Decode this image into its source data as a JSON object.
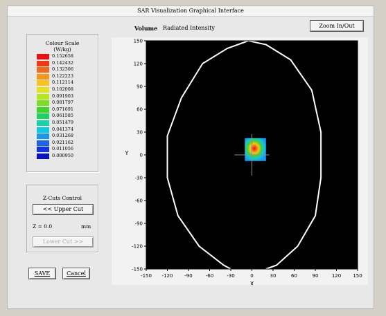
{
  "window": {
    "title": "SAR Visualization Graphical Interface"
  },
  "toolbar": {
    "zoom_label": "Zoom In/Out"
  },
  "header": {
    "volume_label": "Volume",
    "volume_value": "Radiated Intensity"
  },
  "colour_scale": {
    "title": "Colour Scale",
    "unit": "(W/kg)",
    "entries": [
      {
        "value": "0.152658",
        "color": "#e81010"
      },
      {
        "value": "0.142432",
        "color": "#ee3a14"
      },
      {
        "value": "0.132306",
        "color": "#f46a18"
      },
      {
        "value": "0.122223",
        "color": "#f8961c"
      },
      {
        "value": "0.112114",
        "color": "#fbc21f"
      },
      {
        "value": "0.102008",
        "color": "#e4e220"
      },
      {
        "value": "0.091903",
        "color": "#b4e622"
      },
      {
        "value": "0.081797",
        "color": "#7ade22"
      },
      {
        "value": "0.071691",
        "color": "#3ed624"
      },
      {
        "value": "0.061585",
        "color": "#20d060"
      },
      {
        "value": "0.051479",
        "color": "#16d2a8"
      },
      {
        "value": "0.041374",
        "color": "#10c8e0"
      },
      {
        "value": "0.031268",
        "color": "#1898ee"
      },
      {
        "value": "0.021162",
        "color": "#1a64ee"
      },
      {
        "value": "0.011056",
        "color": "#1234e0"
      },
      {
        "value": "0.000950",
        "color": "#0a10c4"
      }
    ]
  },
  "zcut": {
    "title": "Z-Cuts Control",
    "upper_cut_label": "<< Upper Cut",
    "z_label": "Z = 0.0",
    "z_unit": "mm",
    "lower_cut_label": "Lower Cut >>"
  },
  "buttons": {
    "save_label": "SAVE",
    "cancel_label": "Cancel"
  },
  "plot": {
    "xlabel": "X",
    "ylabel": "Y",
    "xticks": [
      "-150",
      "-120",
      "-90",
      "-60",
      "-30",
      "0",
      "30",
      "60",
      "90",
      "120",
      "150"
    ],
    "yticks": [
      "150",
      "120",
      "90",
      "60",
      "30",
      "0",
      "-30",
      "-60",
      "-90",
      "-120",
      "-150"
    ]
  },
  "chart_data": {
    "type": "heatmap",
    "title": "",
    "xlabel": "X",
    "ylabel": "Y",
    "xlim": [
      -150,
      150
    ],
    "ylim": [
      -150,
      150
    ],
    "background": "#000000",
    "outline_color": "#ffffff",
    "outline": [
      {
        "x": -5,
        "y": 150
      },
      {
        "x": -35,
        "y": 140
      },
      {
        "x": -70,
        "y": 120
      },
      {
        "x": -100,
        "y": 75
      },
      {
        "x": -120,
        "y": 25
      },
      {
        "x": -120,
        "y": -30
      },
      {
        "x": -105,
        "y": -80
      },
      {
        "x": -75,
        "y": -120
      },
      {
        "x": -40,
        "y": -145
      },
      {
        "x": -30,
        "y": -150
      }
    ],
    "outline_right": [
      {
        "x": -5,
        "y": 150
      },
      {
        "x": 20,
        "y": 145
      },
      {
        "x": 55,
        "y": 125
      },
      {
        "x": 85,
        "y": 85
      },
      {
        "x": 98,
        "y": 30
      },
      {
        "x": 98,
        "y": -30
      },
      {
        "x": 90,
        "y": -80
      },
      {
        "x": 65,
        "y": -120
      },
      {
        "x": 35,
        "y": -145
      },
      {
        "x": 20,
        "y": -150
      }
    ],
    "hotspot": {
      "x_range": [
        -10,
        20
      ],
      "y_range": [
        -8,
        22
      ],
      "peak": {
        "x": 3,
        "y": 10,
        "value": 0.152658
      },
      "min_value": 0.00095
    },
    "crosshair": {
      "x": 0,
      "y": 0
    }
  }
}
